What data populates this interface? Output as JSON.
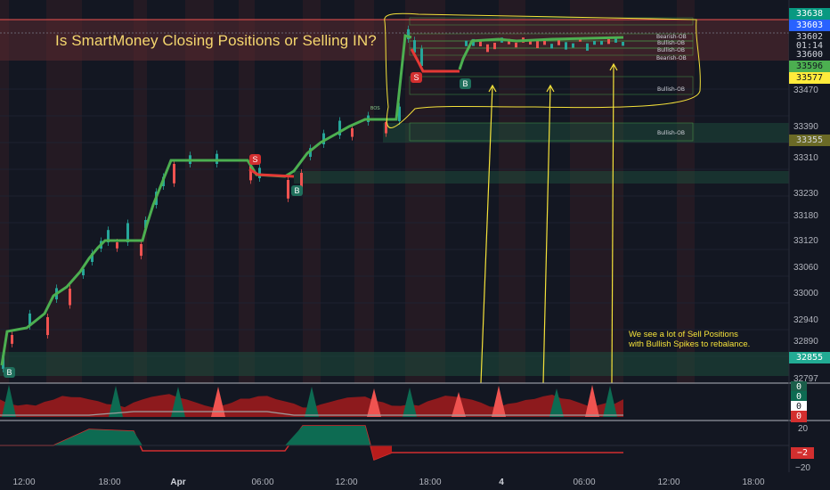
{
  "headline": "Is SmartMoney Closing Positions or Selling IN?",
  "note_lines": [
    "We see a lot of Sell Positions",
    "with Bullish Spikes to rebalance."
  ],
  "price_tags": {
    "t1": {
      "text": "33638",
      "bg": "#089981",
      "fg": "#ffffff"
    },
    "t2": {
      "text": "33603",
      "bg": "#2962ff",
      "fg": "#ffffff"
    },
    "t3": {
      "text": "33602",
      "bg": "#131722",
      "fg": "#d1d4dc"
    },
    "t4": {
      "text": "01:14",
      "bg": "#131722",
      "fg": "#d1d4dc"
    },
    "t5": {
      "text": "33600",
      "bg": "#131722",
      "fg": "#d1d4dc"
    },
    "t6": {
      "text": "33596",
      "bg": "#4caf50",
      "fg": "#131722"
    },
    "t7": {
      "text": "33577",
      "bg": "#ffeb3b",
      "fg": "#131722"
    },
    "t8": {
      "text": "33355",
      "bg": "#6b6a26",
      "fg": "#d1d4dc"
    },
    "t9": {
      "text": "32855",
      "bg": "#22ab94",
      "fg": "#ffffff"
    }
  },
  "price_axis": [
    "33470",
    "33390",
    "33310",
    "33230",
    "33180",
    "33120",
    "33060",
    "33000",
    "32940",
    "32890",
    "32797"
  ],
  "osc1_tags": {
    "a": "0",
    "b": "0",
    "c": "0",
    "d": "0"
  },
  "osc2_axis": {
    "top": "20",
    "bottom": "−20"
  },
  "osc2_tag": "−2",
  "time_axis": [
    "12:00",
    "18:00",
    "Apr",
    "06:00",
    "12:00",
    "18:00",
    "4",
    "06:00",
    "12:00",
    "18:00"
  ],
  "ob_labels": [
    "Bearish-OB",
    "Bullish-OB",
    "Bullish-OB",
    "Bearish-OB",
    "Bullish-OB",
    "Bullish-OB"
  ],
  "signals": {
    "b1": "B",
    "b2": "B",
    "b3": "B",
    "s1": "S",
    "s2": "S"
  },
  "bos_label": "BOS",
  "colors": {
    "background": "#131722",
    "bull": "#26a69a",
    "bear": "#ef5350",
    "trend_line": "#4caf50",
    "annotation": "#f5e23a"
  }
}
